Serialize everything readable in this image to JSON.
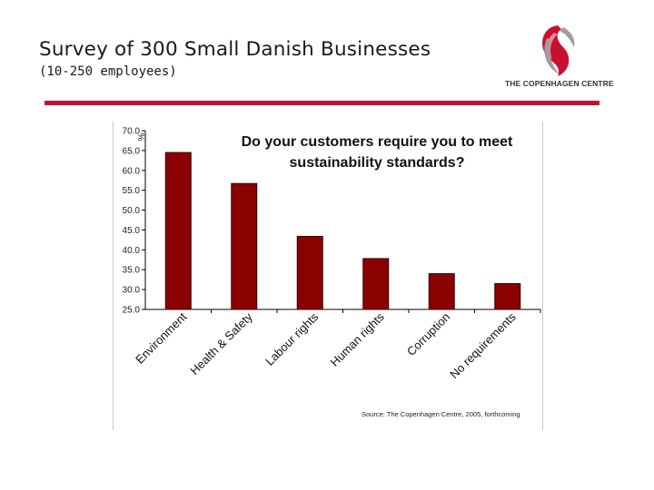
{
  "slide": {
    "title": "Survey of 300 Small Danish Businesses",
    "subtitle": "(10-250 employees)",
    "logo_text": "THE COPENHAGEN CENTRE",
    "accent_color": "#c8102e"
  },
  "chart_data": {
    "type": "bar",
    "title_lines": [
      "Do your customers require you to meet",
      "sustainability standards?"
    ],
    "ylabel": "%",
    "xlabel": "",
    "categories": [
      "Environment",
      "Health & Safety",
      "Labour rights",
      "Human rights",
      "Corruption",
      "No requirements"
    ],
    "values": [
      64.5,
      56.7,
      43.4,
      37.8,
      34.0,
      31.5
    ],
    "ylim": [
      25,
      70
    ],
    "yticks": [
      "25.0",
      "30.0",
      "35.0",
      "40.0",
      "45.0",
      "50.0",
      "55.0",
      "60.0",
      "65.0",
      "70.0"
    ],
    "bar_color": "#8b0000",
    "grid": false,
    "legend": "none",
    "source": "Source: The Copenhagen Centre, 2005, forthcoming"
  }
}
